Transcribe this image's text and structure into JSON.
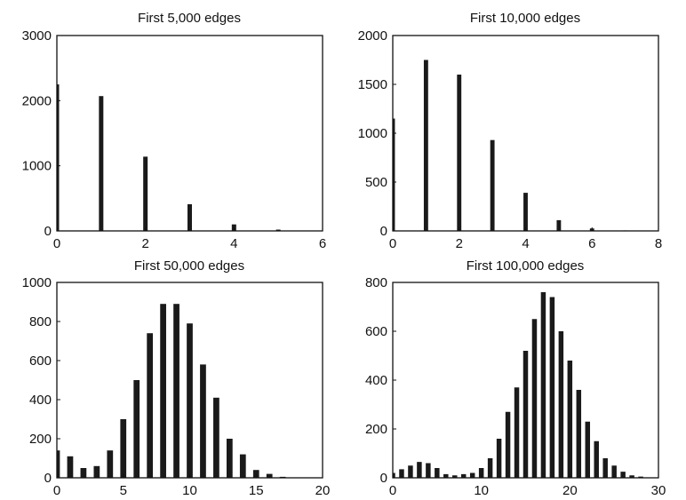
{
  "colors": {
    "bar": "#1a1a1a",
    "axes": "#111111",
    "background": "#ffffff"
  },
  "chart_data": [
    {
      "type": "bar",
      "title": "First 5,000 edges",
      "xlabel": "",
      "ylabel": "",
      "xlim": [
        0,
        6
      ],
      "ylim": [
        0,
        3000
      ],
      "xticks": [
        "0",
        "2",
        "4",
        "6"
      ],
      "yticks": [
        "0",
        "1000",
        "2000",
        "3000"
      ],
      "bar_width": 0.1,
      "grid": false,
      "x": [
        0,
        1,
        2,
        3,
        4,
        5
      ],
      "values": [
        2250,
        2070,
        1140,
        410,
        100,
        20
      ]
    },
    {
      "type": "bar",
      "title": "First 10,000 edges",
      "xlabel": "",
      "ylabel": "",
      "xlim": [
        0,
        8
      ],
      "ylim": [
        0,
        2000
      ],
      "xticks": [
        "0",
        "2",
        "4",
        "6",
        "8"
      ],
      "yticks": [
        "0",
        "500",
        "1000",
        "1500",
        "2000"
      ],
      "bar_width": 0.13,
      "grid": false,
      "x": [
        0,
        1,
        2,
        3,
        4,
        5,
        6,
        7
      ],
      "values": [
        1150,
        1750,
        1600,
        930,
        390,
        110,
        25,
        5
      ]
    },
    {
      "type": "bar",
      "title": "First 50,000 edges",
      "xlabel": "",
      "ylabel": "",
      "xlim": [
        0,
        20
      ],
      "ylim": [
        0,
        1000
      ],
      "xticks": [
        "0",
        "5",
        "10",
        "15",
        "20"
      ],
      "yticks": [
        "0",
        "200",
        "400",
        "600",
        "800",
        "1000"
      ],
      "bar_width": 0.45,
      "grid": false,
      "x": [
        0,
        1,
        2,
        3,
        4,
        5,
        6,
        7,
        8,
        9,
        10,
        11,
        12,
        13,
        14,
        15,
        16,
        17,
        18
      ],
      "values": [
        140,
        110,
        50,
        60,
        140,
        300,
        500,
        740,
        890,
        890,
        790,
        580,
        410,
        200,
        120,
        40,
        20,
        5,
        2
      ]
    },
    {
      "type": "bar",
      "title": "First 100,000 edges",
      "xlabel": "",
      "ylabel": "",
      "xlim": [
        0,
        30
      ],
      "ylim": [
        0,
        800
      ],
      "xticks": [
        "0",
        "10",
        "20",
        "30"
      ],
      "yticks": [
        "0",
        "200",
        "400",
        "600",
        "800"
      ],
      "bar_width": 0.55,
      "grid": false,
      "x": [
        0,
        1,
        2,
        3,
        4,
        5,
        6,
        7,
        8,
        9,
        10,
        11,
        12,
        13,
        14,
        15,
        16,
        17,
        18,
        19,
        20,
        21,
        22,
        23,
        24,
        25,
        26,
        27,
        28
      ],
      "values": [
        20,
        35,
        50,
        65,
        60,
        40,
        15,
        10,
        15,
        20,
        40,
        80,
        160,
        270,
        370,
        520,
        650,
        760,
        740,
        600,
        480,
        360,
        230,
        150,
        80,
        50,
        25,
        10,
        5
      ]
    }
  ]
}
